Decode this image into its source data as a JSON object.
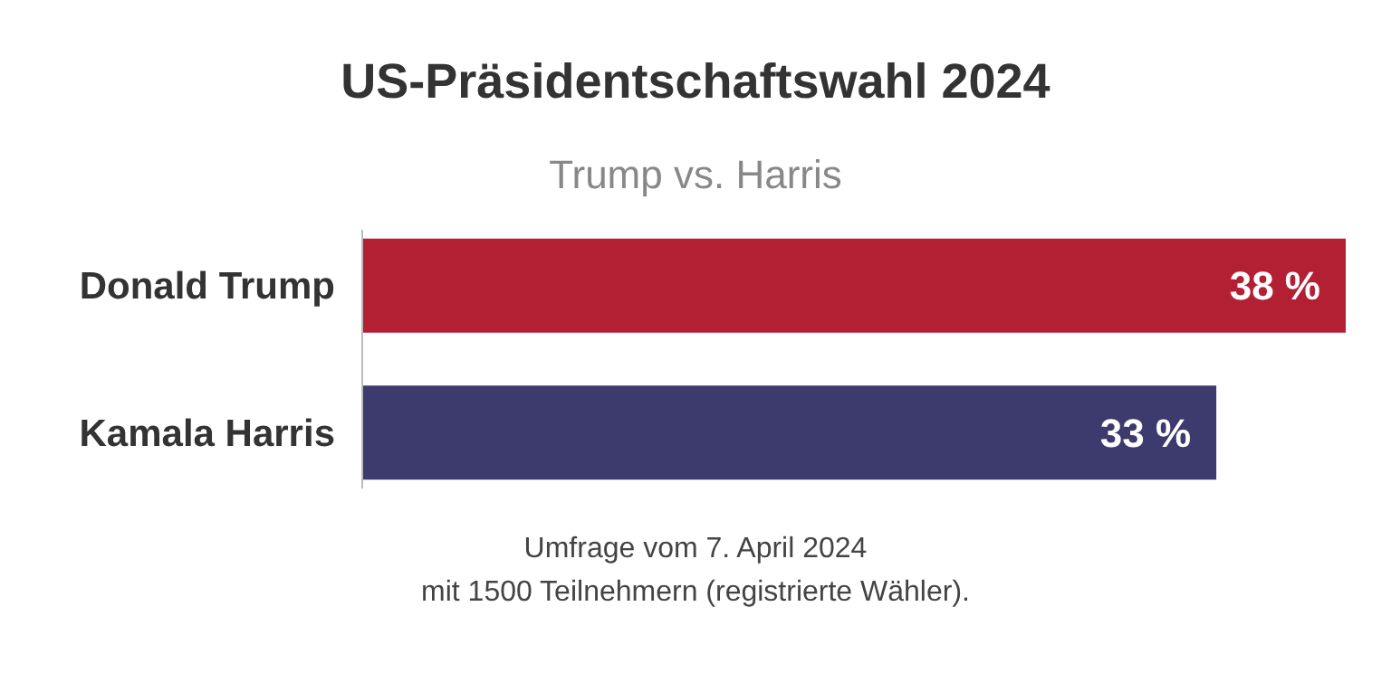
{
  "chart_data": {
    "type": "bar",
    "orientation": "horizontal",
    "title": "US-Präsidentschaftswahl 2024",
    "subtitle": "Trump vs. Harris",
    "categories": [
      "Donald Trump",
      "Kamala Harris"
    ],
    "values": [
      38,
      33
    ],
    "colors": [
      "#b32034",
      "#3d3a6e"
    ],
    "value_labels": [
      "38 %",
      "33 %"
    ],
    "annotations": [
      "Umfrage vom 7. April 2024",
      "mit 1500 Teilnehmern (registrierte Wähler)."
    ]
  }
}
